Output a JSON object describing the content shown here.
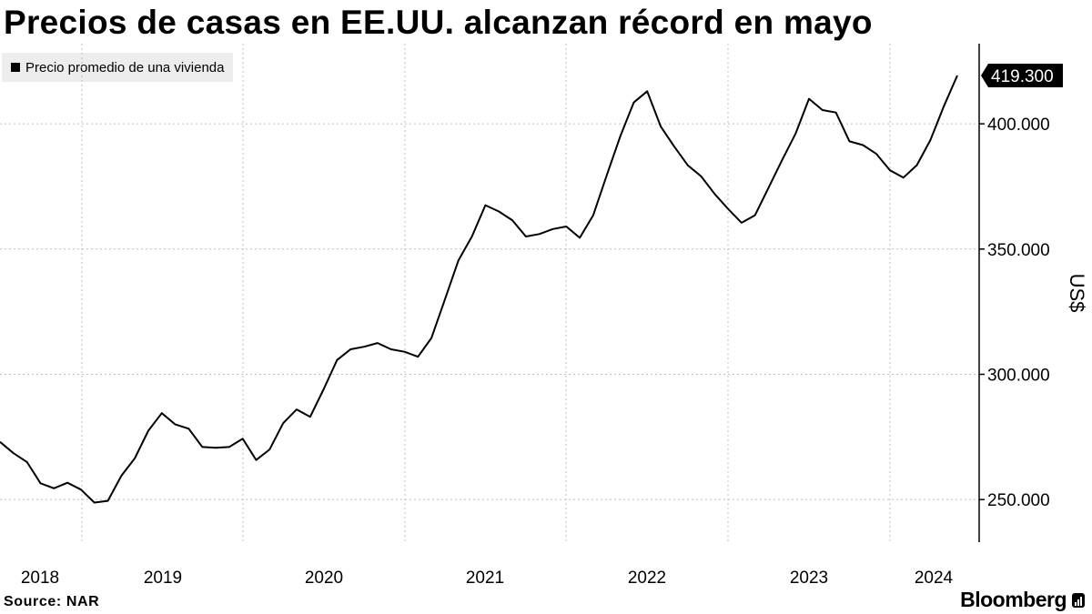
{
  "title": "Precios de casas en EE.UU. alcanzan récord en mayo",
  "legend": {
    "label": "Precio promedio de una vivienda",
    "color": "#000000"
  },
  "footer": {
    "source": "Source:  NAR",
    "brand": "Bloomberg"
  },
  "chart_data": {
    "type": "line",
    "title": "Precios de casas en EE.UU. alcanzan récord en mayo",
    "ylabel": "US$",
    "ylim": [
      233000,
      432000
    ],
    "y_ticks": [
      250000,
      300000,
      350000,
      400000
    ],
    "y_tick_labels": [
      "250.000",
      "300.000",
      "350.000",
      "400.000"
    ],
    "x_tick_labels": [
      "2018",
      "2019",
      "2020",
      "2021",
      "2022",
      "2023",
      "2024"
    ],
    "grid": true,
    "legend_position": "top-left",
    "last_value_label": "419.300",
    "series": [
      {
        "name": "Precio promedio de una vivienda",
        "color": "#000000",
        "points": [
          [
            "2018-01",
            273000
          ],
          [
            "2018-02",
            268500
          ],
          [
            "2018-03",
            265000
          ],
          [
            "2018-04",
            256500
          ],
          [
            "2018-05",
            254500
          ],
          [
            "2018-06",
            256700
          ],
          [
            "2018-07",
            254000
          ],
          [
            "2018-08",
            248800
          ],
          [
            "2018-09",
            249500
          ],
          [
            "2018-10",
            259500
          ],
          [
            "2018-11",
            266500
          ],
          [
            "2018-12",
            277500
          ],
          [
            "2019-01",
            284500
          ],
          [
            "2019-02",
            280000
          ],
          [
            "2019-03",
            278300
          ],
          [
            "2019-04",
            271000
          ],
          [
            "2019-05",
            270700
          ],
          [
            "2019-06",
            271000
          ],
          [
            "2019-07",
            274300
          ],
          [
            "2019-08",
            265800
          ],
          [
            "2019-09",
            270000
          ],
          [
            "2019-10",
            280500
          ],
          [
            "2019-11",
            286000
          ],
          [
            "2019-12",
            283000
          ],
          [
            "2020-01",
            294000
          ],
          [
            "2020-02",
            305700
          ],
          [
            "2020-03",
            310000
          ],
          [
            "2020-04",
            311000
          ],
          [
            "2020-05",
            312500
          ],
          [
            "2020-06",
            310000
          ],
          [
            "2020-07",
            309000
          ],
          [
            "2020-08",
            307000
          ],
          [
            "2020-09",
            314500
          ],
          [
            "2020-10",
            330000
          ],
          [
            "2020-11",
            345500
          ],
          [
            "2020-12",
            355000
          ],
          [
            "2021-01",
            367500
          ],
          [
            "2021-02",
            365000
          ],
          [
            "2021-03",
            361500
          ],
          [
            "2021-04",
            355000
          ],
          [
            "2021-05",
            356000
          ],
          [
            "2021-06",
            358000
          ],
          [
            "2021-07",
            359000
          ],
          [
            "2021-08",
            354500
          ],
          [
            "2021-09",
            363500
          ],
          [
            "2021-10",
            379500
          ],
          [
            "2021-11",
            395000
          ],
          [
            "2021-12",
            408500
          ],
          [
            "2022-01",
            413000
          ],
          [
            "2022-02",
            399000
          ],
          [
            "2022-03",
            391000
          ],
          [
            "2022-04",
            383500
          ],
          [
            "2022-05",
            379000
          ],
          [
            "2022-06",
            372000
          ],
          [
            "2022-07",
            366000
          ],
          [
            "2022-08",
            360500
          ],
          [
            "2022-09",
            363500
          ],
          [
            "2022-10",
            374500
          ],
          [
            "2022-11",
            385500
          ],
          [
            "2022-12",
            396000
          ],
          [
            "2023-01",
            410000
          ],
          [
            "2023-02",
            405500
          ],
          [
            "2023-03",
            404500
          ],
          [
            "2023-04",
            393000
          ],
          [
            "2023-05",
            391500
          ],
          [
            "2023-06",
            388000
          ],
          [
            "2023-07",
            381500
          ],
          [
            "2023-08",
            378500
          ],
          [
            "2023-09",
            383500
          ],
          [
            "2023-10",
            393500
          ],
          [
            "2023-11",
            407000
          ],
          [
            "2023-12",
            419300
          ]
        ]
      }
    ]
  }
}
